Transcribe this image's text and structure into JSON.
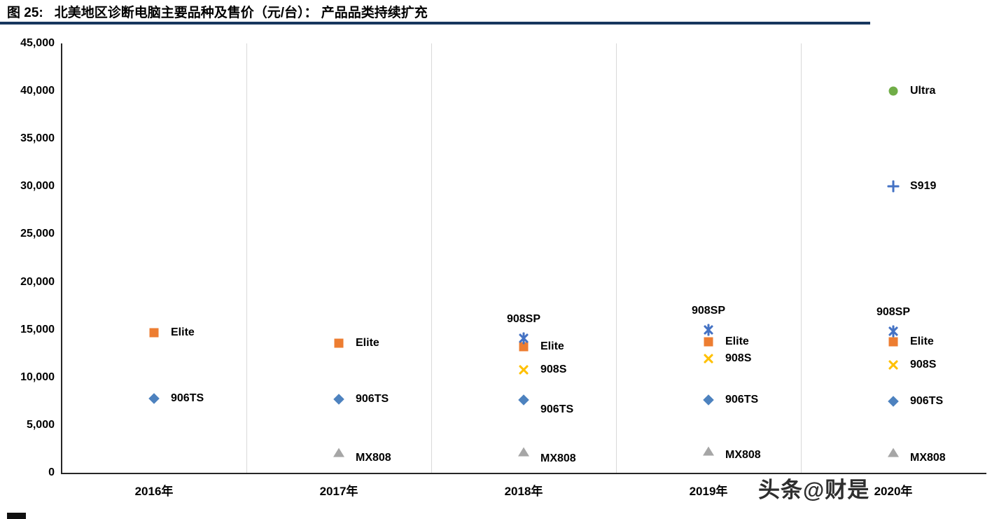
{
  "header": {
    "title_prefix": "图 25:",
    "title": "北美地区诊断电脑主要品种及售价（元/台）：  产品品类持续扩充"
  },
  "watermark_text": "头条@财是",
  "chart_data": {
    "type": "scatter",
    "title": "北美地区诊断电脑主要品种及售价（元/台）：产品品类持续扩充",
    "xlabel": "",
    "ylabel": "",
    "categories": [
      "2016年",
      "2017年",
      "2018年",
      "2019年",
      "2020年"
    ],
    "ylim": [
      0,
      45000
    ],
    "grid": "vertical-category-separators-only",
    "legend": "none (labels placed next to points)",
    "yticks": [
      {
        "v": 0,
        "label": "0"
      },
      {
        "v": 5000,
        "label": "5,000"
      },
      {
        "v": 10000,
        "label": "10,000"
      },
      {
        "v": 15000,
        "label": "15,000"
      },
      {
        "v": 20000,
        "label": "20,000"
      },
      {
        "v": 25000,
        "label": "25,000"
      },
      {
        "v": 30000,
        "label": "30,000"
      },
      {
        "v": 35000,
        "label": "35,000"
      },
      {
        "v": 40000,
        "label": "40,000"
      },
      {
        "v": 45000,
        "label": "45,000"
      }
    ],
    "series": [
      {
        "name": "Elite",
        "marker": "square",
        "color": "#ED7D31",
        "points": [
          {
            "category": "2016年",
            "value": 14700
          },
          {
            "category": "2017年",
            "value": 13600
          },
          {
            "category": "2018年",
            "value": 13200
          },
          {
            "category": "2019年",
            "value": 13700
          },
          {
            "category": "2020年",
            "value": 13700
          }
        ]
      },
      {
        "name": "906TS",
        "marker": "diamond",
        "color": "#4D82BF",
        "points": [
          {
            "category": "2016年",
            "value": 7800
          },
          {
            "category": "2017年",
            "value": 7700
          },
          {
            "category": "2018年",
            "value": 7600,
            "label_dy": 14
          },
          {
            "category": "2019年",
            "value": 7600
          },
          {
            "category": "2020年",
            "value": 7500
          }
        ]
      },
      {
        "name": "MX808",
        "marker": "triangle",
        "color": "#A6A6A6",
        "points": [
          {
            "category": "2017年",
            "value": 2100,
            "label_dy": 8
          },
          {
            "category": "2018年",
            "value": 2200,
            "label_dy": 10
          },
          {
            "category": "2019年",
            "value": 2300,
            "label_dy": 6
          },
          {
            "category": "2020年",
            "value": 2100,
            "label_dy": 8
          }
        ]
      },
      {
        "name": "908SP",
        "marker": "asterisk",
        "color": "#4472C4",
        "points": [
          {
            "category": "2018年",
            "value": 14100,
            "label_pos": "above"
          },
          {
            "category": "2019年",
            "value": 15000,
            "label_pos": "above"
          },
          {
            "category": "2020年",
            "value": 14800,
            "label_pos": "above"
          }
        ]
      },
      {
        "name": "908S",
        "marker": "x",
        "color": "#FFC000",
        "points": [
          {
            "category": "2018年",
            "value": 10800
          },
          {
            "category": "2019年",
            "value": 12000
          },
          {
            "category": "2020年",
            "value": 11300
          }
        ]
      },
      {
        "name": "S919",
        "marker": "plus",
        "color": "#4472C4",
        "points": [
          {
            "category": "2020年",
            "value": 30000
          }
        ]
      },
      {
        "name": "Ultra",
        "marker": "circle",
        "color": "#70AD47",
        "points": [
          {
            "category": "2020年",
            "value": 40000
          }
        ]
      }
    ]
  }
}
